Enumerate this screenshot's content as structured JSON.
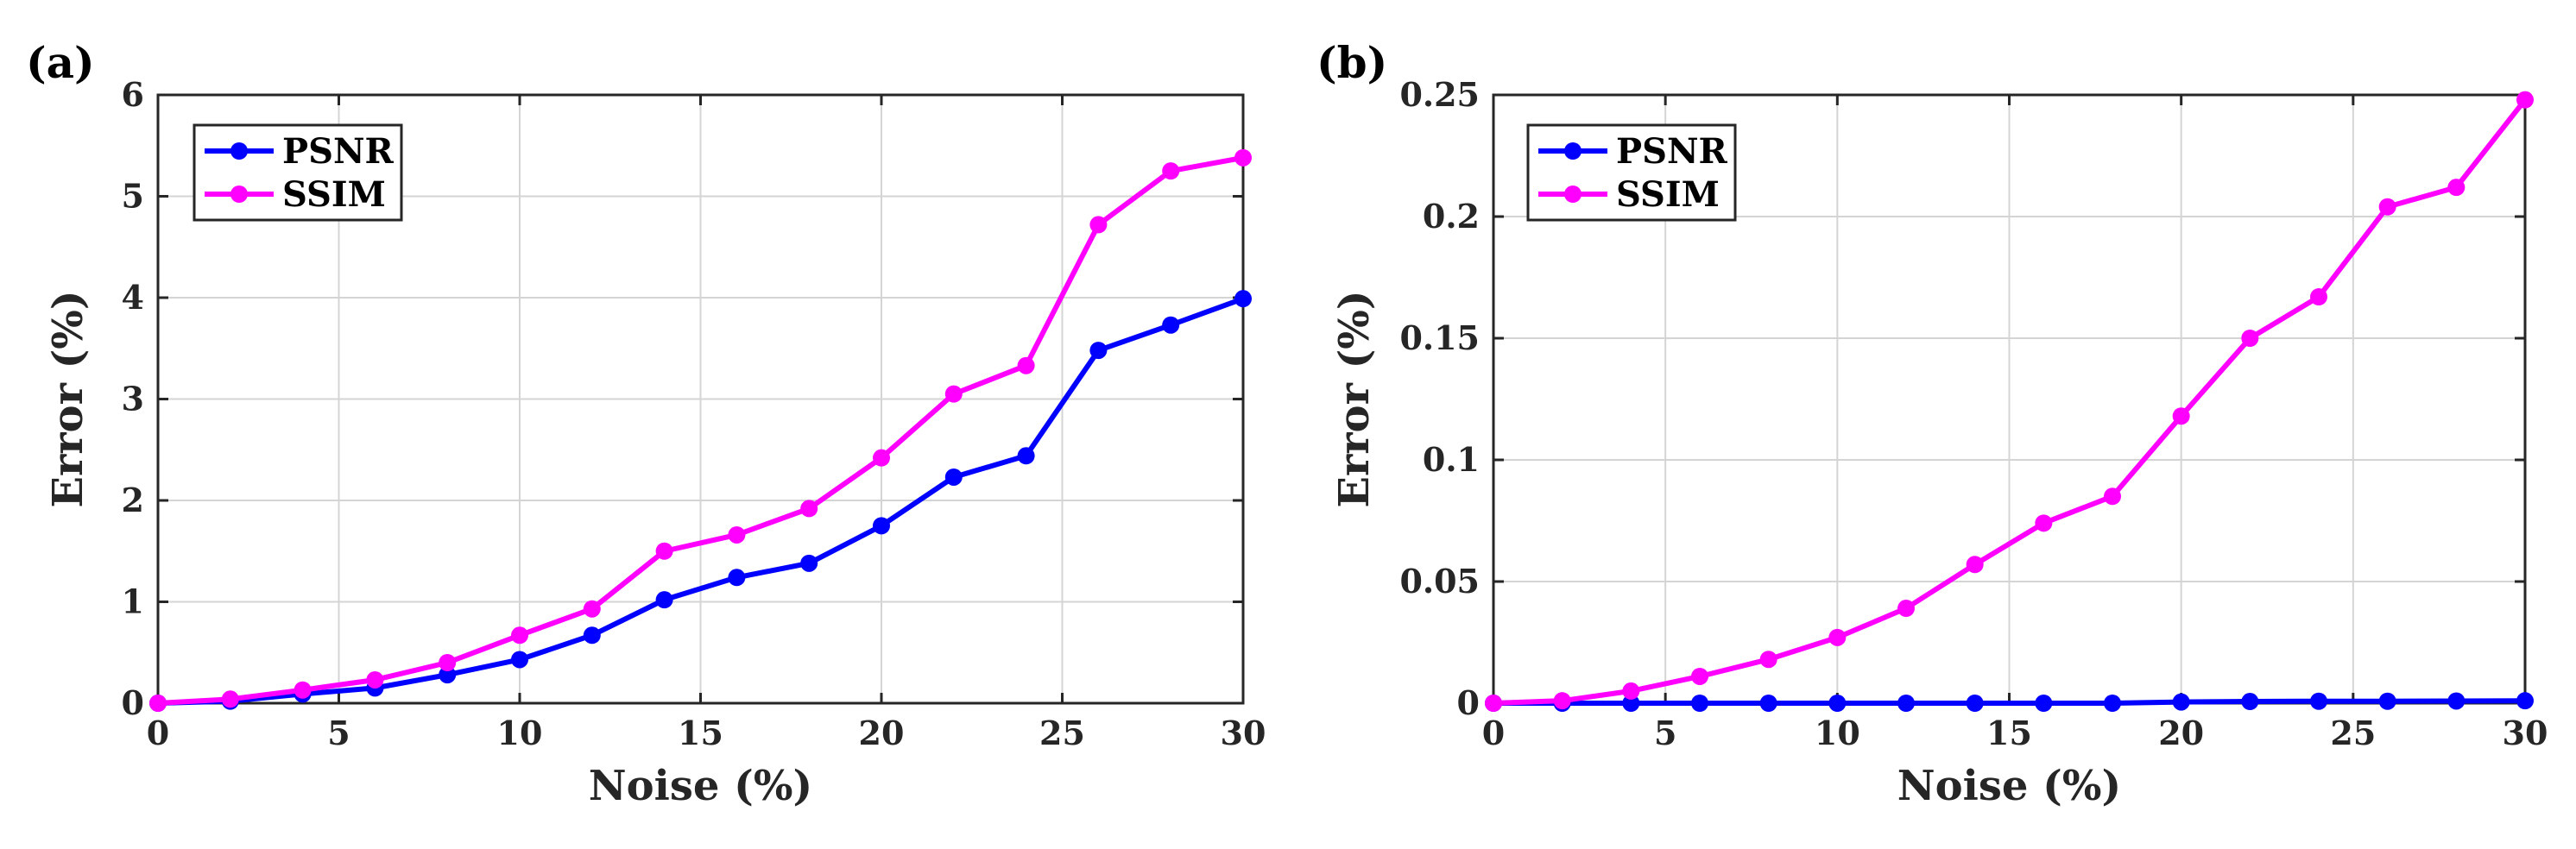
{
  "chart_data": [
    {
      "panel_label": "(a)",
      "type": "line",
      "xlabel": "Noise (%)",
      "ylabel": "Error (%)",
      "xlim": [
        0,
        30
      ],
      "ylim": [
        0,
        6
      ],
      "xticks": [
        0,
        5,
        10,
        15,
        20,
        25,
        30
      ],
      "yticks": [
        0,
        1,
        2,
        3,
        4,
        5,
        6
      ],
      "ytick_labels": [
        "0",
        "1",
        "2",
        "3",
        "4",
        "5",
        "6"
      ],
      "grid": true,
      "legend_position": "top-left",
      "x": [
        0,
        2,
        4,
        6,
        8,
        10,
        12,
        14,
        16,
        18,
        20,
        22,
        24,
        26,
        28,
        30
      ],
      "series": [
        {
          "name": "PSNR",
          "color": "#0000ff",
          "values": [
            0.0,
            0.02,
            0.09,
            0.15,
            0.28,
            0.43,
            0.67,
            1.02,
            1.24,
            1.38,
            1.75,
            2.23,
            2.44,
            3.48,
            3.73,
            3.99
          ]
        },
        {
          "name": "SSIM",
          "color": "#ff00ff",
          "values": [
            0.0,
            0.04,
            0.13,
            0.23,
            0.4,
            0.67,
            0.93,
            1.5,
            1.66,
            1.92,
            2.42,
            3.05,
            3.33,
            4.72,
            5.25,
            5.38
          ]
        }
      ]
    },
    {
      "panel_label": "(b)",
      "type": "line",
      "xlabel": "Noise (%)",
      "ylabel": "Error (%)",
      "xlim": [
        0,
        30
      ],
      "ylim": [
        0,
        0.25
      ],
      "xticks": [
        0,
        5,
        10,
        15,
        20,
        25,
        30
      ],
      "yticks": [
        0,
        0.05,
        0.1,
        0.15,
        0.2,
        0.25
      ],
      "ytick_labels": [
        "0",
        "0.05",
        "0.1",
        "0.15",
        "0.2",
        "0.25"
      ],
      "grid": true,
      "legend_position": "top-left",
      "x": [
        0,
        2,
        4,
        6,
        8,
        10,
        12,
        14,
        16,
        18,
        20,
        22,
        24,
        26,
        28,
        30
      ],
      "series": [
        {
          "name": "PSNR",
          "color": "#0000ff",
          "values": [
            0.0,
            0.0,
            0.0,
            0.0,
            0.0,
            0.0,
            0.0,
            0.0,
            0.0,
            0.0,
            0.0005,
            0.0007,
            0.0008,
            0.0008,
            0.0009,
            0.001
          ]
        },
        {
          "name": "SSIM",
          "color": "#ff00ff",
          "values": [
            0.0,
            0.001,
            0.005,
            0.011,
            0.018,
            0.027,
            0.039,
            0.057,
            0.074,
            0.085,
            0.118,
            0.15,
            0.167,
            0.204,
            0.212,
            0.248
          ]
        }
      ]
    }
  ]
}
